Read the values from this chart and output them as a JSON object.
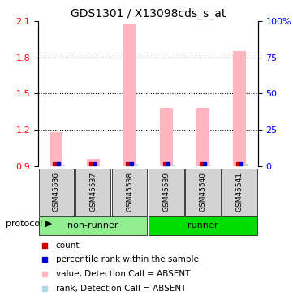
{
  "title": "GDS1301 / X13098cds_s_at",
  "samples": [
    "GSM45536",
    "GSM45537",
    "GSM45538",
    "GSM45539",
    "GSM45540",
    "GSM45541"
  ],
  "groups": [
    "non-runner",
    "non-runner",
    "non-runner",
    "runner",
    "runner",
    "runner"
  ],
  "group_colors": {
    "non-runner": "#90EE90",
    "runner": "#00DD00"
  },
  "ylim_left": [
    0.9,
    2.1
  ],
  "ylim_right": [
    0,
    100
  ],
  "yticks_left": [
    0.9,
    1.2,
    1.5,
    1.8,
    2.1
  ],
  "yticks_right": [
    0,
    25,
    50,
    75,
    100
  ],
  "ytick_labels_right": [
    "0",
    "25",
    "50",
    "75",
    "100%"
  ],
  "bar_values": [
    1.18,
    0.96,
    2.08,
    1.38,
    1.38,
    1.85
  ],
  "rank_values": [
    3,
    2,
    8,
    4,
    6,
    9
  ],
  "bar_color_absent": "#FFB6C1",
  "rank_color_absent": "#ADD8E6",
  "bar_base": 0.9,
  "rank_base": 0.9,
  "legend_items": [
    {
      "label": "count",
      "color": "#CC0000",
      "marker": "s"
    },
    {
      "label": "percentile rank within the sample",
      "color": "#0000CC",
      "marker": "s"
    },
    {
      "label": "value, Detection Call = ABSENT",
      "color": "#FFB6C1",
      "marker": "s"
    },
    {
      "label": "rank, Detection Call = ABSENT",
      "color": "#ADD8E6",
      "marker": "s"
    }
  ]
}
